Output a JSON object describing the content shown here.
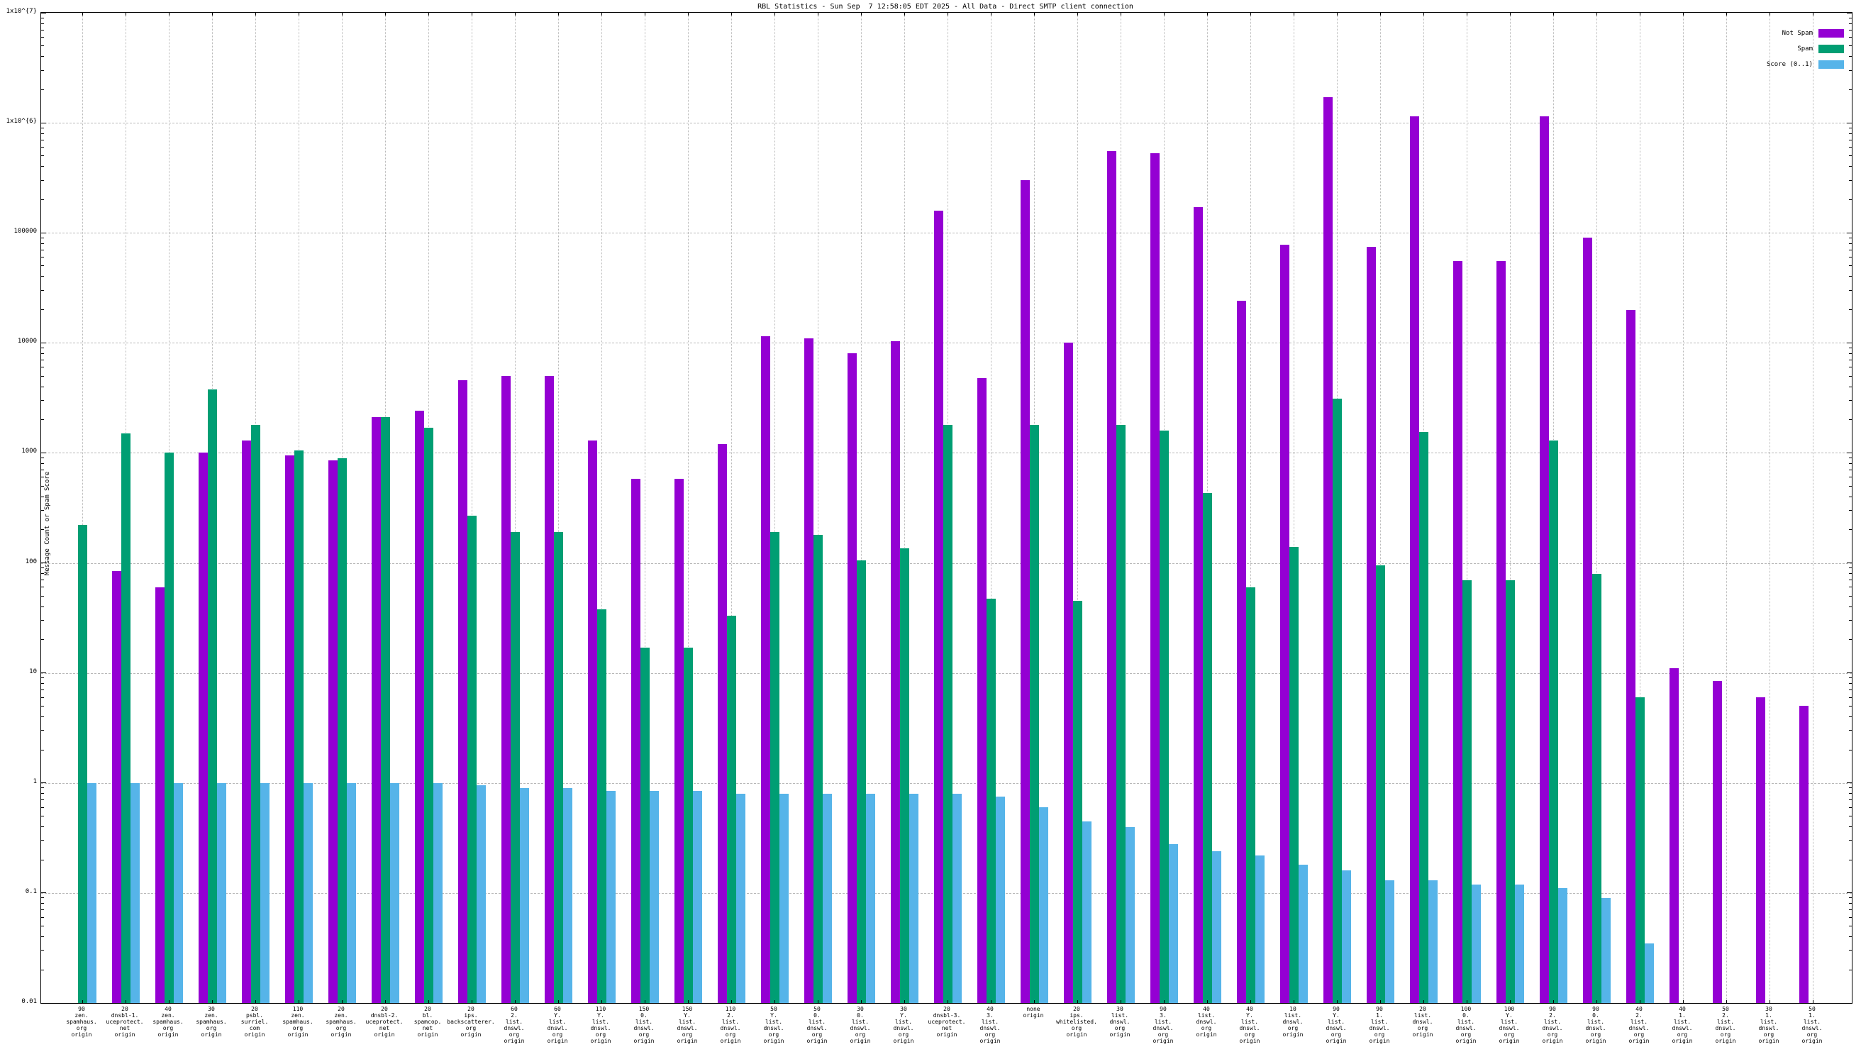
{
  "title": "RBL Statistics - Sun Sep  7 12:58:05 EDT 2025 - All Data - Direct SMTP client connection",
  "y_axis": {
    "label": "Message Count or Spam Score",
    "tick_labels": [
      "0.01",
      "0.1",
      "1",
      "10",
      "100",
      "1000",
      "10000",
      "100000",
      "1x10^{6}",
      "1x10^{7}"
    ],
    "min": 0.01,
    "max": 10000000
  },
  "legend": [
    {
      "label": "Not Spam",
      "color": "#9400d3"
    },
    {
      "label": "Spam",
      "color": "#009e73"
    },
    {
      "label": "Score (0..1)",
      "color": "#56b4e9"
    }
  ],
  "chart_data": {
    "type": "bar",
    "scale": "log",
    "ylim": [
      0.01,
      10000000
    ],
    "grid": true,
    "legend_position": "top-right",
    "title": "RBL Statistics - Sun Sep  7 12:58:05 EDT 2025 - All Data - Direct SMTP client connection",
    "ylabel": "Message Count or Spam Score",
    "categories": [
      [
        "90",
        "zen.",
        "spamhaus.",
        "org",
        "origin"
      ],
      [
        "20",
        "dnsbl-1.",
        "uceprotect.",
        "net",
        "origin"
      ],
      [
        "40",
        "zen.",
        "spamhaus.",
        "org",
        "origin"
      ],
      [
        "30",
        "zen.",
        "spamhaus.",
        "org",
        "origin"
      ],
      [
        "20",
        "psbl.",
        "surriel.",
        "com",
        "origin"
      ],
      [
        "110",
        "zen.",
        "spamhaus.",
        "org",
        "origin"
      ],
      [
        "20",
        "zen.",
        "spamhaus.",
        "org",
        "origin"
      ],
      [
        "20",
        "dnsbl-2.",
        "uceprotect.",
        "net",
        "origin"
      ],
      [
        "20",
        "bl.",
        "spamcop.",
        "net",
        "origin"
      ],
      [
        "20",
        "ips.",
        "backscatterer.",
        "org",
        "origin"
      ],
      [
        "60",
        "2.",
        "list.",
        "dnswl.",
        "org",
        "origin"
      ],
      [
        "60",
        "Y.",
        "list.",
        "dnswl.",
        "org",
        "origin"
      ],
      [
        "110",
        "Y.",
        "list.",
        "dnswl.",
        "org",
        "origin"
      ],
      [
        "150",
        "0.",
        "list.",
        "dnswl.",
        "org",
        "origin"
      ],
      [
        "150",
        "Y.",
        "list.",
        "dnswl.",
        "org",
        "origin"
      ],
      [
        "110",
        "2.",
        "list.",
        "dnswl.",
        "org",
        "origin"
      ],
      [
        "50",
        "Y.",
        "list.",
        "dnswl.",
        "org",
        "origin"
      ],
      [
        "50",
        "0.",
        "list.",
        "dnswl.",
        "org",
        "origin"
      ],
      [
        "30",
        "0.",
        "list.",
        "dnswl.",
        "org",
        "origin"
      ],
      [
        "30",
        "Y.",
        "list.",
        "dnswl.",
        "org",
        "origin"
      ],
      [
        "20",
        "dnsbl-3.",
        "uceprotect.",
        "net",
        "origin"
      ],
      [
        "40",
        "3.",
        "list.",
        "dnswl.",
        "org",
        "origin"
      ],
      [
        "none",
        "origin"
      ],
      [
        "20",
        "ips.",
        "whitelisted.",
        "org",
        "origin"
      ],
      [
        "30",
        "list.",
        "dnswl.",
        "org",
        "origin"
      ],
      [
        "90",
        "3.",
        "list.",
        "dnswl.",
        "org",
        "origin"
      ],
      [
        "40",
        "list.",
        "dnswl.",
        "org",
        "origin"
      ],
      [
        "40",
        "Y.",
        "list.",
        "dnswl.",
        "org",
        "origin"
      ],
      [
        "10",
        "list.",
        "dnswl.",
        "org",
        "origin"
      ],
      [
        "90",
        "Y.",
        "list.",
        "dnswl.",
        "org",
        "origin"
      ],
      [
        "90",
        "1.",
        "list.",
        "dnswl.",
        "org",
        "origin"
      ],
      [
        "20",
        "list.",
        "dnswl.",
        "org",
        "origin"
      ],
      [
        "100",
        "0.",
        "list.",
        "dnswl.",
        "org",
        "origin"
      ],
      [
        "100",
        "Y.",
        "list.",
        "dnswl.",
        "org",
        "origin"
      ],
      [
        "90",
        "2.",
        "list.",
        "dnswl.",
        "org",
        "origin"
      ],
      [
        "90",
        "0.",
        "list.",
        "dnswl.",
        "org",
        "origin"
      ],
      [
        "40",
        "2.",
        "list.",
        "dnswl.",
        "org",
        "origin"
      ],
      [
        "40",
        "1.",
        "list.",
        "dnswl.",
        "org",
        "origin"
      ],
      [
        "50",
        "2.",
        "list.",
        "dnswl.",
        "org",
        "origin"
      ],
      [
        "30",
        "1.",
        "list.",
        "dnswl.",
        "org",
        "origin"
      ],
      [
        "50",
        "1.",
        "list.",
        "dnswl.",
        "org",
        "origin"
      ]
    ],
    "series": [
      {
        "name": "Not Spam",
        "color": "#9400d3",
        "values": [
          null,
          85,
          60,
          1000,
          1300,
          950,
          850,
          2100,
          2400,
          4600,
          5000,
          5000,
          1300,
          580,
          580,
          1200,
          11500,
          11000,
          8000,
          10300,
          160000,
          4800,
          300000,
          10000,
          550000,
          530000,
          170000,
          24000,
          78000,
          1700000,
          75000,
          1150000,
          55000,
          55000,
          1150000,
          90000,
          20000,
          11,
          8.5,
          6,
          5
        ]
      },
      {
        "name": "Spam",
        "color": "#009e73",
        "values": [
          220,
          1500,
          1000,
          3800,
          1800,
          1050,
          900,
          2100,
          1700,
          270,
          190,
          190,
          38,
          17,
          17,
          33,
          190,
          180,
          105,
          135,
          1800,
          47,
          1800,
          45,
          1800,
          1600,
          430,
          60,
          140,
          3100,
          95,
          1550,
          70,
          70,
          1300,
          80,
          6,
          null,
          null,
          null,
          null
        ]
      },
      {
        "name": "Score (0..1)",
        "color": "#56b4e9",
        "values": [
          1,
          1,
          1,
          1,
          1,
          1,
          1,
          1,
          1,
          0.95,
          0.9,
          0.9,
          0.85,
          0.85,
          0.85,
          0.8,
          0.8,
          0.8,
          0.8,
          0.8,
          0.8,
          0.75,
          0.6,
          0.45,
          0.4,
          0.28,
          0.24,
          0.22,
          0.18,
          0.16,
          0.13,
          0.13,
          0.12,
          0.12,
          0.11,
          0.09,
          0.035,
          null,
          null,
          null,
          null
        ]
      }
    ]
  }
}
